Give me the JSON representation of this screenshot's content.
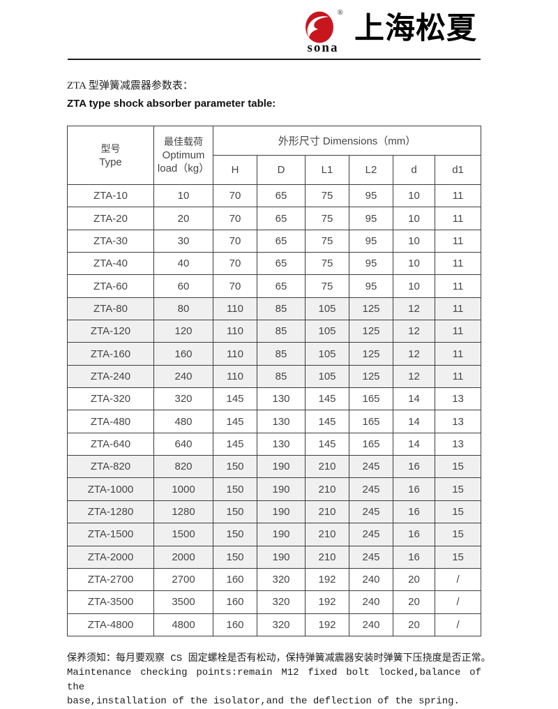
{
  "logo": {
    "brand": "sona",
    "registered": "®",
    "company": "上海松夏",
    "red": "#c8161e"
  },
  "page": {
    "title_zh": "ZTA 型弹簧减震器参数表：",
    "title_en": "ZTA type shock absorber parameter table:"
  },
  "table": {
    "col_type_zh": "型号",
    "col_type_en": "Type",
    "col_load_zh": "最佳载荷",
    "col_load_en1": "Optimum",
    "col_load_en2": "load（kg）",
    "dims_header": "外形尺寸 Dimensions（mm）",
    "sub_headers": [
      "H",
      "D",
      "L1",
      "L2",
      "d",
      "d1"
    ],
    "rows": [
      {
        "type": "ZTA-10",
        "load": "10",
        "h": "70",
        "d": "65",
        "l1": "75",
        "l2": "95",
        "dd": "10",
        "d1": "11",
        "shaded": false
      },
      {
        "type": "ZTA-20",
        "load": "20",
        "h": "70",
        "d": "65",
        "l1": "75",
        "l2": "95",
        "dd": "10",
        "d1": "11",
        "shaded": false
      },
      {
        "type": "ZTA-30",
        "load": "30",
        "h": "70",
        "d": "65",
        "l1": "75",
        "l2": "95",
        "dd": "10",
        "d1": "11",
        "shaded": false
      },
      {
        "type": "ZTA-40",
        "load": "40",
        "h": "70",
        "d": "65",
        "l1": "75",
        "l2": "95",
        "dd": "10",
        "d1": "11",
        "shaded": false
      },
      {
        "type": "ZTA-60",
        "load": "60",
        "h": "70",
        "d": "65",
        "l1": "75",
        "l2": "95",
        "dd": "10",
        "d1": "11",
        "shaded": false
      },
      {
        "type": "ZTA-80",
        "load": "80",
        "h": "110",
        "d": "85",
        "l1": "105",
        "l2": "125",
        "dd": "12",
        "d1": "11",
        "shaded": true
      },
      {
        "type": "ZTA-120",
        "load": "120",
        "h": "110",
        "d": "85",
        "l1": "105",
        "l2": "125",
        "dd": "12",
        "d1": "11",
        "shaded": true
      },
      {
        "type": "ZTA-160",
        "load": "160",
        "h": "110",
        "d": "85",
        "l1": "105",
        "l2": "125",
        "dd": "12",
        "d1": "11",
        "shaded": true
      },
      {
        "type": "ZTA-240",
        "load": "240",
        "h": "110",
        "d": "85",
        "l1": "105",
        "l2": "125",
        "dd": "12",
        "d1": "11",
        "shaded": true
      },
      {
        "type": "ZTA-320",
        "load": "320",
        "h": "145",
        "d": "130",
        "l1": "145",
        "l2": "165",
        "dd": "14",
        "d1": "13",
        "shaded": false
      },
      {
        "type": "ZTA-480",
        "load": "480",
        "h": "145",
        "d": "130",
        "l1": "145",
        "l2": "165",
        "dd": "14",
        "d1": "13",
        "shaded": false
      },
      {
        "type": "ZTA-640",
        "load": "640",
        "h": "145",
        "d": "130",
        "l1": "145",
        "l2": "165",
        "dd": "14",
        "d1": "13",
        "shaded": false
      },
      {
        "type": "ZTA-820",
        "load": "820",
        "h": "150",
        "d": "190",
        "l1": "210",
        "l2": "245",
        "dd": "16",
        "d1": "15",
        "shaded": true
      },
      {
        "type": "ZTA-1000",
        "load": "1000",
        "h": "150",
        "d": "190",
        "l1": "210",
        "l2": "245",
        "dd": "16",
        "d1": "15",
        "shaded": true
      },
      {
        "type": "ZTA-1280",
        "load": "1280",
        "h": "150",
        "d": "190",
        "l1": "210",
        "l2": "245",
        "dd": "16",
        "d1": "15",
        "shaded": true
      },
      {
        "type": "ZTA-1500",
        "load": "1500",
        "h": "150",
        "d": "190",
        "l1": "210",
        "l2": "245",
        "dd": "16",
        "d1": "15",
        "shaded": true
      },
      {
        "type": "ZTA-2000",
        "load": "2000",
        "h": "150",
        "d": "190",
        "l1": "210",
        "l2": "245",
        "dd": "16",
        "d1": "15",
        "shaded": true
      },
      {
        "type": "ZTA-2700",
        "load": "2700",
        "h": "160",
        "d": "320",
        "l1": "192",
        "l2": "240",
        "dd": "20",
        "d1": "/",
        "shaded": false
      },
      {
        "type": "ZTA-3500",
        "load": "3500",
        "h": "160",
        "d": "320",
        "l1": "192",
        "l2": "240",
        "dd": "20",
        "d1": "/",
        "shaded": false
      },
      {
        "type": "ZTA-4800",
        "load": "4800",
        "h": "160",
        "d": "320",
        "l1": "192",
        "l2": "240",
        "dd": "20",
        "d1": "/",
        "shaded": false
      }
    ]
  },
  "footer": {
    "zh": "保养须知：每月要观察 CS 固定螺栓是否有松动，保持弹簧减震器安装时弹簧下压挠度是否正常。",
    "en_line1": "Maintenance checking points:remain M12 fixed bolt locked,balance of the",
    "en_line2": "base,installation of the isolator,and the deflection of the spring."
  }
}
